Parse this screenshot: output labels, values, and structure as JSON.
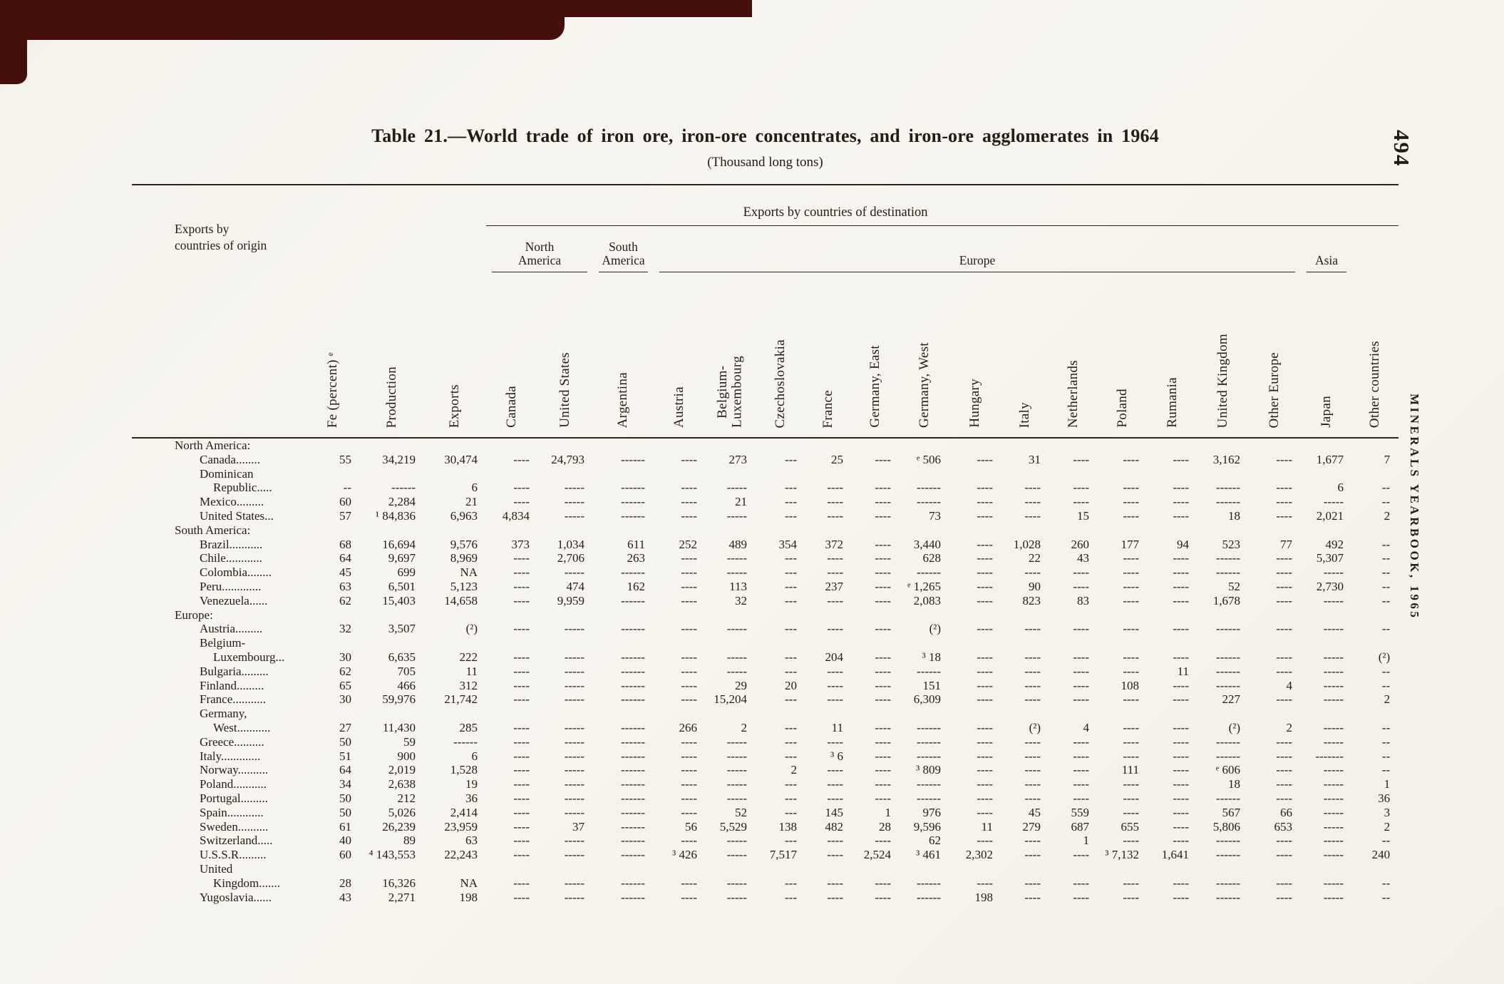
{
  "page": {
    "number": "494",
    "running_title": "MINERALS YEARBOOK, 1965"
  },
  "table": {
    "title": "Table 21.—World trade of iron ore, iron-ore concentrates, and iron-ore agglomerates in 1964",
    "subtitle": "(Thousand long tons)",
    "stub_header": "Exports by\ncountries of origin",
    "destinations_header": "Exports by countries of destination",
    "region_groups": [
      {
        "label": "North\nAmerica",
        "span": 2
      },
      {
        "label": "South\nAmerica",
        "span": 1
      },
      {
        "label": "Europe",
        "span": 13
      },
      {
        "label": "Asia",
        "span": 1
      },
      {
        "label": "",
        "span": 1
      }
    ],
    "columns": [
      "Fe (percent) ᵉ",
      "Production",
      "Exports",
      "Canada",
      "United States",
      "Argentina",
      "Austria",
      "Belgium-\nLuxembourg",
      "Czechoslovakia",
      "France",
      "Germany, East",
      "Germany, West",
      "Hungary",
      "Italy",
      "Netherlands",
      "Poland",
      "Rumania",
      "United Kingdom",
      "Other Europe",
      "Japan",
      "Other countries"
    ],
    "rows": [
      {
        "type": "section",
        "label": "North America:"
      },
      {
        "type": "data",
        "label": "Canada........",
        "values": [
          "55",
          "34,219",
          "30,474",
          "----",
          "24,793",
          "------",
          "----",
          "273",
          "---",
          "25",
          "----",
          "ᵉ 506",
          "----",
          "31",
          "----",
          "----",
          "----",
          "3,162",
          "----",
          "1,677",
          "7"
        ]
      },
      {
        "type": "data",
        "label": "Dominican\nRepublic.....",
        "values": [
          "--",
          "------",
          "6",
          "----",
          "-----",
          "------",
          "----",
          "-----",
          "---",
          "----",
          "----",
          "------",
          "----",
          "----",
          "----",
          "----",
          "----",
          "------",
          "----",
          "6",
          "--"
        ]
      },
      {
        "type": "data",
        "label": "Mexico.........",
        "values": [
          "60",
          "2,284",
          "21",
          "----",
          "-----",
          "------",
          "----",
          "21",
          "---",
          "----",
          "----",
          "------",
          "----",
          "----",
          "----",
          "----",
          "----",
          "------",
          "----",
          "-----",
          "--"
        ]
      },
      {
        "type": "data",
        "label": "United States...",
        "values": [
          "57",
          "¹ 84,836",
          "6,963",
          "4,834",
          "-----",
          "------",
          "----",
          "-----",
          "---",
          "----",
          "----",
          "73",
          "----",
          "----",
          "15",
          "----",
          "----",
          "18",
          "----",
          "2,021",
          "2"
        ]
      },
      {
        "type": "section",
        "label": "South America:"
      },
      {
        "type": "data",
        "label": "Brazil...........",
        "values": [
          "68",
          "16,694",
          "9,576",
          "373",
          "1,034",
          "611",
          "252",
          "489",
          "354",
          "372",
          "----",
          "3,440",
          "----",
          "1,028",
          "260",
          "177",
          "94",
          "523",
          "77",
          "492",
          "--"
        ]
      },
      {
        "type": "data",
        "label": "Chile............",
        "values": [
          "64",
          "9,697",
          "8,969",
          "----",
          "2,706",
          "263",
          "----",
          "-----",
          "---",
          "----",
          "----",
          "628",
          "----",
          "22",
          "43",
          "----",
          "----",
          "------",
          "----",
          "5,307",
          "--"
        ]
      },
      {
        "type": "data",
        "label": "Colombia........",
        "values": [
          "45",
          "699",
          "NA",
          "----",
          "-----",
          "------",
          "----",
          "-----",
          "---",
          "----",
          "----",
          "------",
          "----",
          "----",
          "----",
          "----",
          "----",
          "------",
          "----",
          "-----",
          "--"
        ]
      },
      {
        "type": "data",
        "label": "Peru.............",
        "values": [
          "63",
          "6,501",
          "5,123",
          "----",
          "474",
          "162",
          "----",
          "113",
          "---",
          "237",
          "----",
          "ᵉ 1,265",
          "----",
          "90",
          "----",
          "----",
          "----",
          "52",
          "----",
          "2,730",
          "--"
        ]
      },
      {
        "type": "data",
        "label": "Venezuela......",
        "values": [
          "62",
          "15,403",
          "14,658",
          "----",
          "9,959",
          "------",
          "----",
          "32",
          "---",
          "----",
          "----",
          "2,083",
          "----",
          "823",
          "83",
          "----",
          "----",
          "1,678",
          "----",
          "-----",
          "--"
        ]
      },
      {
        "type": "section",
        "label": "Europe:"
      },
      {
        "type": "data",
        "label": "Austria.........",
        "values": [
          "32",
          "3,507",
          "(²)",
          "----",
          "-----",
          "------",
          "----",
          "-----",
          "---",
          "----",
          "----",
          "(²)",
          "----",
          "----",
          "----",
          "----",
          "----",
          "------",
          "----",
          "-----",
          "--"
        ]
      },
      {
        "type": "data",
        "label": "Belgium-\nLuxembourg...",
        "values": [
          "30",
          "6,635",
          "222",
          "----",
          "-----",
          "------",
          "----",
          "-----",
          "---",
          "204",
          "----",
          "³ 18",
          "----",
          "----",
          "----",
          "----",
          "----",
          "------",
          "----",
          "-----",
          "(²)"
        ]
      },
      {
        "type": "data",
        "label": "Bulgaria.........",
        "values": [
          "62",
          "705",
          "11",
          "----",
          "-----",
          "------",
          "----",
          "-----",
          "---",
          "----",
          "----",
          "------",
          "----",
          "----",
          "----",
          "----",
          "11",
          "------",
          "----",
          "-----",
          "--"
        ]
      },
      {
        "type": "data",
        "label": "Finland.........",
        "values": [
          "65",
          "466",
          "312",
          "----",
          "-----",
          "------",
          "----",
          "29",
          "20",
          "----",
          "----",
          "151",
          "----",
          "----",
          "----",
          "108",
          "----",
          "------",
          "4",
          "-----",
          "--"
        ]
      },
      {
        "type": "data",
        "label": "France...........",
        "values": [
          "30",
          "59,976",
          "21,742",
          "----",
          "-----",
          "------",
          "----",
          "15,204",
          "---",
          "----",
          "----",
          "6,309",
          "----",
          "----",
          "----",
          "----",
          "----",
          "227",
          "----",
          "-----",
          "2"
        ]
      },
      {
        "type": "data",
        "label": "Germany,\nWest...........",
        "values": [
          "27",
          "11,430",
          "285",
          "----",
          "-----",
          "------",
          "266",
          "2",
          "---",
          "11",
          "----",
          "------",
          "----",
          "(²)",
          "4",
          "----",
          "----",
          "(²)",
          "2",
          "-----",
          "--"
        ]
      },
      {
        "type": "data",
        "label": "Greece..........",
        "values": [
          "50",
          "59",
          "------",
          "----",
          "-----",
          "------",
          "----",
          "-----",
          "---",
          "----",
          "----",
          "------",
          "----",
          "----",
          "----",
          "----",
          "----",
          "------",
          "----",
          "-----",
          "--"
        ]
      },
      {
        "type": "data",
        "label": "Italy.............",
        "values": [
          "51",
          "900",
          "6",
          "----",
          "-----",
          "------",
          "----",
          "-----",
          "---",
          "³ 6",
          "----",
          "------",
          "----",
          "----",
          "----",
          "----",
          "----",
          "------",
          "----",
          "-------",
          "--"
        ]
      },
      {
        "type": "data",
        "label": "Norway..........",
        "values": [
          "64",
          "2,019",
          "1,528",
          "----",
          "-----",
          "------",
          "----",
          "-----",
          "2",
          "----",
          "----",
          "³ 809",
          "----",
          "----",
          "----",
          "111",
          "----",
          "ᵉ 606",
          "----",
          "-----",
          "--"
        ]
      },
      {
        "type": "data",
        "label": "Poland...........",
        "values": [
          "34",
          "2,638",
          "19",
          "----",
          "-----",
          "------",
          "----",
          "-----",
          "---",
          "----",
          "----",
          "------",
          "----",
          "----",
          "----",
          "----",
          "----",
          "18",
          "----",
          "-----",
          "1"
        ]
      },
      {
        "type": "data",
        "label": "Portugal.........",
        "values": [
          "50",
          "212",
          "36",
          "----",
          "-----",
          "------",
          "----",
          "-----",
          "---",
          "----",
          "----",
          "------",
          "----",
          "----",
          "----",
          "----",
          "----",
          "------",
          "----",
          "-----",
          "36"
        ]
      },
      {
        "type": "data",
        "label": "Spain............",
        "values": [
          "50",
          "5,026",
          "2,414",
          "----",
          "-----",
          "------",
          "----",
          "52",
          "---",
          "145",
          "1",
          "976",
          "----",
          "45",
          "559",
          "----",
          "----",
          "567",
          "66",
          "-----",
          "3"
        ]
      },
      {
        "type": "data",
        "label": "Sweden..........",
        "values": [
          "61",
          "26,239",
          "23,959",
          "----",
          "37",
          "------",
          "56",
          "5,529",
          "138",
          "482",
          "28",
          "9,596",
          "11",
          "279",
          "687",
          "655",
          "----",
          "5,806",
          "653",
          "-----",
          "2"
        ]
      },
      {
        "type": "data",
        "label": "Switzerland.....",
        "values": [
          "40",
          "89",
          "63",
          "----",
          "-----",
          "------",
          "----",
          "-----",
          "---",
          "----",
          "----",
          "62",
          "----",
          "----",
          "1",
          "----",
          "----",
          "------",
          "----",
          "-----",
          "--"
        ]
      },
      {
        "type": "data",
        "label": "U.S.S.R.........",
        "values": [
          "60",
          "⁴ 143,553",
          "22,243",
          "----",
          "-----",
          "------",
          "³ 426",
          "-----",
          "7,517",
          "----",
          "2,524",
          "³ 461",
          "2,302",
          "----",
          "----",
          "³ 7,132",
          "1,641",
          "------",
          "----",
          "-----",
          "240"
        ]
      },
      {
        "type": "data",
        "label": "United\nKingdom.......",
        "values": [
          "28",
          "16,326",
          "NA",
          "----",
          "-----",
          "------",
          "----",
          "-----",
          "---",
          "----",
          "----",
          "------",
          "----",
          "----",
          "----",
          "----",
          "----",
          "------",
          "----",
          "-----",
          "--"
        ]
      },
      {
        "type": "data",
        "label": "Yugoslavia......",
        "values": [
          "43",
          "2,271",
          "198",
          "----",
          "-----",
          "------",
          "----",
          "-----",
          "---",
          "----",
          "----",
          "------",
          "198",
          "----",
          "----",
          "----",
          "----",
          "------",
          "----",
          "-----",
          "--"
        ]
      }
    ]
  }
}
